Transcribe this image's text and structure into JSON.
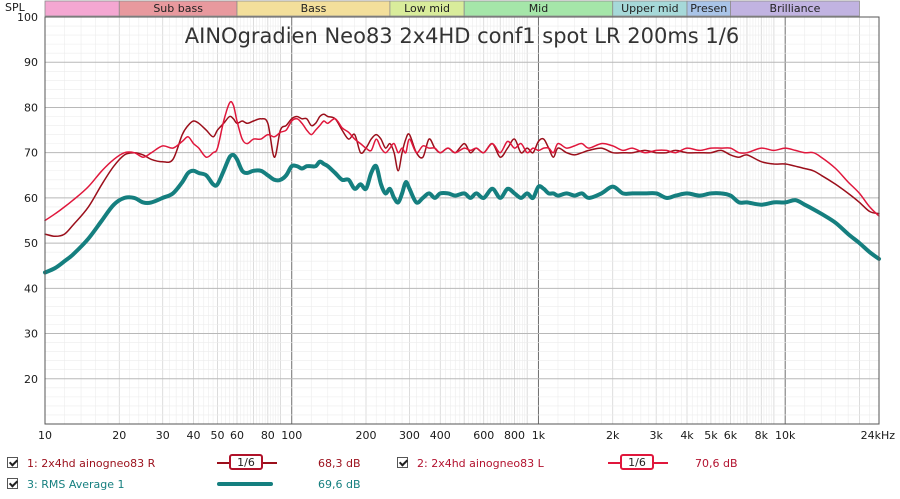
{
  "chart_data": {
    "type": "line",
    "title": "AINOgradien Neo83 2x4HD conf1 spot LR 200ms 1/6",
    "ylabel": "SPL",
    "xscale": "log",
    "xlim": [
      10,
      24000
    ],
    "ylim": [
      10,
      100
    ],
    "yticks": [
      20,
      30,
      40,
      50,
      60,
      70,
      80,
      90,
      100
    ],
    "xticks": [
      {
        "f": 10,
        "label": "10"
      },
      {
        "f": 20,
        "label": "20"
      },
      {
        "f": 30,
        "label": "30"
      },
      {
        "f": 40,
        "label": "40"
      },
      {
        "f": 50,
        "label": "50"
      },
      {
        "f": 60,
        "label": "60"
      },
      {
        "f": 80,
        "label": "80"
      },
      {
        "f": 100,
        "label": "100"
      },
      {
        "f": 200,
        "label": "200"
      },
      {
        "f": 300,
        "label": "300"
      },
      {
        "f": 400,
        "label": "400"
      },
      {
        "f": 600,
        "label": "600"
      },
      {
        "f": 800,
        "label": "800"
      },
      {
        "f": 1000,
        "label": "1k"
      },
      {
        "f": 2000,
        "label": "2k"
      },
      {
        "f": 3000,
        "label": "3k"
      },
      {
        "f": 4000,
        "label": "4k"
      },
      {
        "f": 5000,
        "label": "5k"
      },
      {
        "f": 6000,
        "label": "6k"
      },
      {
        "f": 8000,
        "label": "8k"
      },
      {
        "f": 10000,
        "label": "10k"
      },
      {
        "f": 24000,
        "label": "24kHz"
      }
    ],
    "grid": true,
    "bands": [
      {
        "label": "",
        "from": 10,
        "to": 20,
        "color": "#f4a7d2"
      },
      {
        "label": "Sub bass",
        "from": 20,
        "to": 60,
        "color": "#e8999e"
      },
      {
        "label": "Bass",
        "from": 60,
        "to": 250,
        "color": "#f3df9b"
      },
      {
        "label": "Low mid",
        "from": 250,
        "to": 500,
        "color": "#d9ec9b"
      },
      {
        "label": "Mid",
        "from": 500,
        "to": 2000,
        "color": "#a5e6a9"
      },
      {
        "label": "Upper mid",
        "from": 2000,
        "to": 4000,
        "color": "#a6d9d9"
      },
      {
        "label": "Presen",
        "from": 4000,
        "to": 6000,
        "color": "#a9c4e8"
      },
      {
        "label": "Brilliance",
        "from": 6000,
        "to": 20000,
        "color": "#c1b3e1"
      }
    ],
    "series": [
      {
        "name": "1: 2x4hd ainogneo83 R",
        "color": "#9b0f1b",
        "width": 1.5,
        "smoothing": "1/6",
        "value_label": "68,3 dB",
        "x": [
          10,
          11,
          12,
          13,
          15,
          17,
          19,
          21,
          23,
          25,
          27,
          30,
          33,
          36,
          38,
          40,
          42,
          45,
          48,
          50,
          53,
          56,
          58,
          60,
          63,
          66,
          70,
          75,
          80,
          85,
          90,
          95,
          100,
          105,
          110,
          115,
          120,
          125,
          130,
          135,
          140,
          150,
          160,
          170,
          180,
          190,
          200,
          210,
          220,
          230,
          240,
          250,
          260,
          270,
          280,
          290,
          300,
          320,
          340,
          360,
          380,
          400,
          430,
          460,
          500,
          530,
          560,
          600,
          650,
          700,
          750,
          800,
          850,
          900,
          950,
          1000,
          1050,
          1100,
          1150,
          1200,
          1300,
          1400,
          1500,
          1600,
          1800,
          2000,
          2200,
          2400,
          2700,
          3000,
          3300,
          3600,
          4000,
          4500,
          5000,
          5500,
          6000,
          6500,
          7000,
          8000,
          9000,
          10000,
          11000,
          12000,
          13000,
          14000,
          16000,
          18000,
          20000,
          22000,
          24000
        ],
        "y": [
          52,
          51.5,
          52,
          54,
          58,
          63,
          67,
          69.5,
          70,
          69.5,
          68.5,
          68,
          68.5,
          74,
          76,
          77,
          76.5,
          75,
          73.5,
          75,
          76.5,
          78,
          77.5,
          76.5,
          77,
          76.5,
          77,
          77.5,
          76.5,
          69,
          75,
          76,
          77.5,
          78,
          77.5,
          77.5,
          76,
          76.5,
          78,
          78.5,
          78,
          77.5,
          75,
          73,
          74,
          70,
          71,
          73,
          74,
          73,
          71,
          72,
          70,
          66,
          70,
          73,
          74,
          70,
          69,
          73,
          71,
          70,
          71,
          70,
          72,
          70,
          71,
          70,
          72,
          69,
          71,
          73,
          70,
          71,
          70,
          72.5,
          73,
          71,
          69,
          71,
          70,
          69.5,
          70,
          70.5,
          71,
          70,
          70,
          70,
          70.5,
          70,
          70,
          70.5,
          70,
          70,
          70,
          70.5,
          69.5,
          69,
          69.5,
          68,
          67.5,
          67.5,
          67,
          66.5,
          66,
          65,
          63,
          61,
          59,
          57,
          56.5
        ]
      },
      {
        "name": "2: 2x4hd ainogneo83 L",
        "color": "#e0173c",
        "width": 1.5,
        "smoothing": "1/6",
        "value_label": "70,6 dB",
        "x": [
          10,
          11,
          12,
          13,
          15,
          17,
          19,
          21,
          23,
          25,
          27,
          30,
          33,
          36,
          38,
          40,
          42,
          45,
          48,
          50,
          53,
          56,
          58,
          60,
          63,
          66,
          70,
          75,
          80,
          85,
          90,
          95,
          100,
          105,
          110,
          115,
          120,
          125,
          130,
          135,
          140,
          150,
          160,
          170,
          180,
          190,
          200,
          210,
          220,
          230,
          240,
          250,
          260,
          270,
          280,
          290,
          300,
          320,
          340,
          360,
          380,
          400,
          430,
          460,
          500,
          530,
          560,
          600,
          650,
          700,
          750,
          800,
          850,
          900,
          950,
          1000,
          1050,
          1100,
          1150,
          1200,
          1300,
          1400,
          1500,
          1600,
          1800,
          2000,
          2200,
          2400,
          2700,
          3000,
          3300,
          3600,
          4000,
          4500,
          5000,
          5500,
          6000,
          6500,
          7000,
          8000,
          9000,
          10000,
          11000,
          12000,
          13000,
          14000,
          16000,
          18000,
          20000,
          22000,
          24000
        ],
        "y": [
          55,
          56.5,
          58,
          59.5,
          62.5,
          66,
          68.5,
          70,
          70,
          69,
          70,
          71.5,
          71,
          72.5,
          73.5,
          72,
          71,
          69,
          70,
          71,
          77,
          81,
          80.5,
          77,
          73,
          72,
          73,
          73,
          74,
          73.5,
          74.5,
          75,
          77,
          77.5,
          76.5,
          75,
          74,
          75,
          76,
          77,
          76.5,
          77.5,
          75.5,
          74.5,
          73,
          72,
          71,
          70.5,
          73,
          71,
          70,
          71,
          72,
          70,
          71,
          70,
          73,
          70,
          71.5,
          71,
          71,
          70,
          71,
          70,
          71,
          70.5,
          71,
          70,
          72,
          70,
          72.5,
          71,
          72,
          70,
          71,
          70.5,
          71,
          71,
          70,
          72,
          71,
          71.5,
          72,
          71,
          72,
          71.5,
          70.5,
          71,
          70,
          70.5,
          70.5,
          70,
          71,
          70.5,
          71,
          71,
          71,
          70,
          70,
          71,
          70.5,
          71,
          70.5,
          70,
          70,
          69,
          66.5,
          63.5,
          61,
          58,
          56
        ]
      },
      {
        "name": "3: RMS Average 1",
        "color": "#157f7f",
        "width": 4,
        "smoothing": "",
        "value_label": "69,6 dB",
        "x": [
          10,
          11,
          12,
          13,
          15,
          17,
          19,
          21,
          23,
          25,
          27,
          30,
          33,
          36,
          38,
          40,
          42,
          45,
          48,
          50,
          53,
          56,
          58,
          60,
          63,
          66,
          70,
          75,
          80,
          85,
          90,
          95,
          100,
          105,
          110,
          115,
          120,
          125,
          130,
          135,
          140,
          150,
          160,
          170,
          180,
          190,
          200,
          210,
          220,
          230,
          240,
          250,
          260,
          270,
          280,
          290,
          300,
          320,
          340,
          360,
          380,
          400,
          430,
          460,
          500,
          530,
          560,
          600,
          650,
          700,
          750,
          800,
          850,
          900,
          950,
          1000,
          1050,
          1100,
          1150,
          1200,
          1300,
          1400,
          1500,
          1600,
          1800,
          2000,
          2200,
          2400,
          2700,
          3000,
          3300,
          3600,
          4000,
          4500,
          5000,
          5500,
          6000,
          6500,
          7000,
          8000,
          9000,
          10000,
          11000,
          12000,
          13000,
          14000,
          16000,
          18000,
          20000,
          22000,
          24000
        ],
        "y": [
          43.5,
          44.5,
          46,
          47.5,
          51,
          55,
          58.5,
          60,
          60,
          59,
          59,
          60,
          61,
          63.5,
          65.5,
          66,
          65.5,
          65,
          63,
          63,
          66,
          69,
          69.5,
          68.5,
          66,
          65.5,
          66,
          66,
          65,
          64,
          64,
          65,
          67,
          67,
          66.5,
          67,
          67,
          67,
          68,
          67.5,
          67,
          65.5,
          64,
          64,
          62,
          63,
          62,
          65.5,
          67,
          63,
          61,
          62,
          60,
          59,
          61,
          63.5,
          62,
          59,
          60,
          61,
          60,
          61,
          61,
          60.5,
          61,
          60,
          61,
          60,
          62,
          60,
          62,
          61,
          60,
          61,
          60,
          62.5,
          62,
          61,
          61,
          60.5,
          61,
          60.5,
          61,
          60,
          61,
          62.5,
          61,
          61,
          61,
          61,
          60,
          60.5,
          61,
          60.5,
          61,
          61,
          60.5,
          59,
          59,
          58.5,
          59,
          59,
          59.5,
          58.5,
          57.5,
          56.5,
          54.5,
          52,
          50,
          48,
          46.5
        ]
      }
    ]
  }
}
